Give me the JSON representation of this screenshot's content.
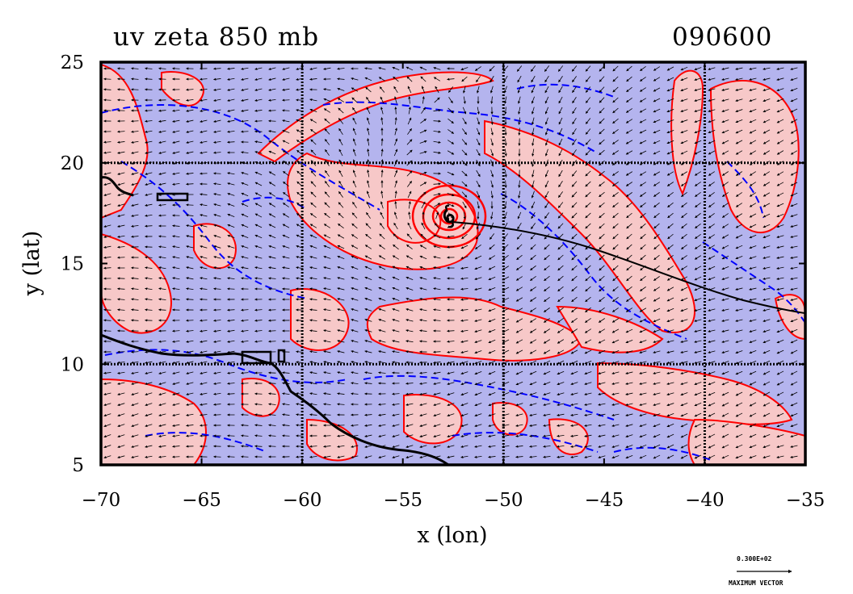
{
  "title_left": "uv zeta 850 mb",
  "title_right": "090600",
  "x_axis": {
    "label": "x (lon)",
    "ticks": [
      "−70",
      "−65",
      "−60",
      "−55",
      "−50",
      "−45",
      "−40",
      "−35"
    ],
    "range": [
      -70,
      -35
    ]
  },
  "y_axis": {
    "label": "y (lat)",
    "ticks": [
      "5",
      "10",
      "15",
      "20",
      "25"
    ],
    "range": [
      5,
      25
    ]
  },
  "grid_lines_lon": [
    -60,
    -50,
    -40
  ],
  "grid_lines_lat": [
    10,
    20
  ],
  "legend": {
    "vector_value": "0.300E+02",
    "vector_label": "MAXIMUM VECTOR"
  },
  "colors": {
    "positive_fill": "#f7c8c8",
    "negative_fill": "#b4b4ee",
    "positive_contour": "#ff0000",
    "negative_contour": "#0000ff",
    "coast": "#000000",
    "grid": "#000000"
  },
  "features": {
    "storm_symbol": "hurricane-icon",
    "storm_center": {
      "lon": -52.8,
      "lat": 17.2
    }
  }
}
